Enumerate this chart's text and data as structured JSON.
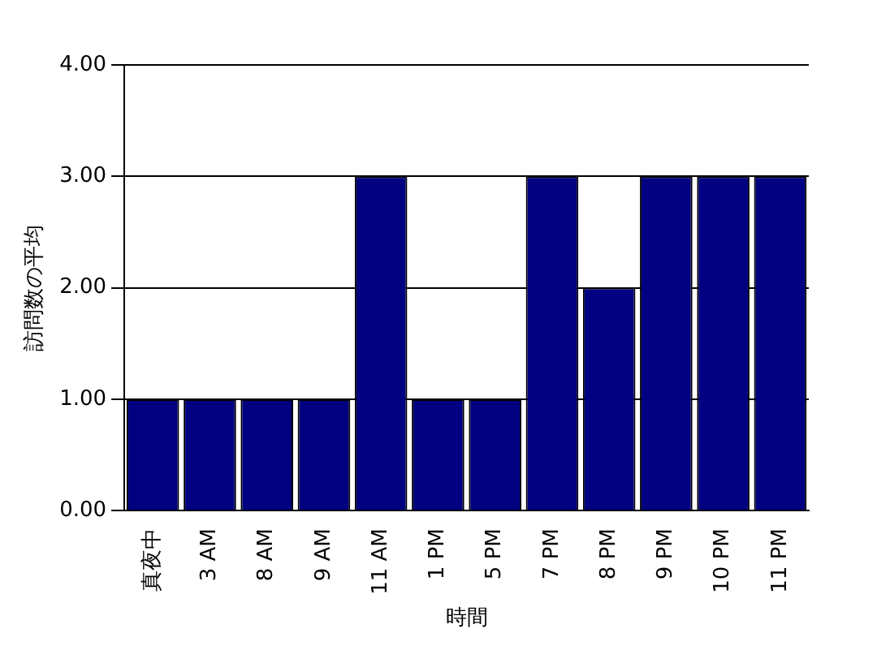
{
  "chart_data": {
    "type": "bar",
    "xlabel": "時間",
    "ylabel": "訪問数の平均",
    "categories": [
      "真夜中",
      "3 AM",
      "8 AM",
      "9 AM",
      "11 AM",
      "1 PM",
      "5 PM",
      "7 PM",
      "8 PM",
      "9 PM",
      "10 PM",
      "11 PM"
    ],
    "values": [
      1,
      1,
      1,
      1,
      3,
      1,
      1,
      3,
      2,
      3,
      3,
      3
    ],
    "color": "#000080",
    "ylim": [
      0,
      4
    ],
    "yticks": [
      {
        "value": 0,
        "label": "0.00"
      },
      {
        "value": 1,
        "label": "1.00"
      },
      {
        "value": 2,
        "label": "2.00"
      },
      {
        "value": 3,
        "label": "3.00"
      },
      {
        "value": 4,
        "label": "4.00"
      }
    ],
    "grid": "y",
    "legend": false
  }
}
